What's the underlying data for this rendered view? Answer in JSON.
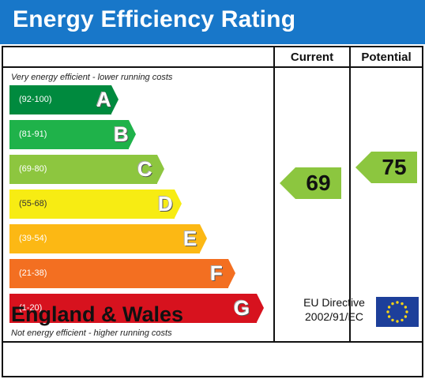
{
  "title": "Energy Efficiency Rating",
  "columns": {
    "current": "Current",
    "potential": "Potential"
  },
  "notes": {
    "top": "Very energy efficient - lower running costs",
    "bottom": "Not energy efficient - higher running costs"
  },
  "bands": [
    {
      "range": "(92-100)",
      "letter": "A",
      "color": "#008a3e"
    },
    {
      "range": "(81-91)",
      "letter": "B",
      "color": "#1fb24a"
    },
    {
      "range": "(69-80)",
      "letter": "C",
      "color": "#8dc63f"
    },
    {
      "range": "(55-68)",
      "letter": "D",
      "color": "#f7ec13"
    },
    {
      "range": "(39-54)",
      "letter": "E",
      "color": "#fcb814"
    },
    {
      "range": "(21-38)",
      "letter": "F",
      "color": "#f36f21"
    },
    {
      "range": "(1-20)",
      "letter": "G",
      "color": "#d7121e"
    }
  ],
  "ratings": {
    "current": {
      "value": "69",
      "band": "C",
      "color": "#8cc63f"
    },
    "potential": {
      "value": "75",
      "band": "C",
      "color": "#8cc63f"
    }
  },
  "footer": {
    "country": "England & Wales",
    "directive_line1": "EU Directive",
    "directive_line2": "2002/91/EC"
  },
  "flag": {
    "name": "eu-flag-icon",
    "background": "#1d3f9a",
    "stars": "#f7d417"
  }
}
